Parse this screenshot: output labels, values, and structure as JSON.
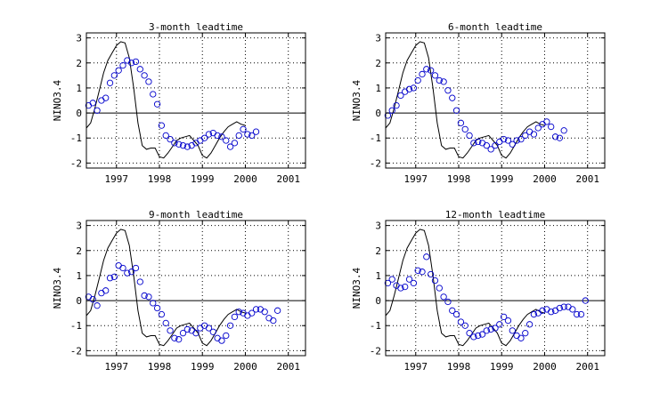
{
  "colors": {
    "forecast": "#0000cc",
    "observed": "#000000"
  },
  "shared": {
    "ylabel": "NINO3.4",
    "xlim": [
      1996.3,
      2001.4
    ],
    "ylim": [
      -2.2,
      3.2
    ],
    "xticks": [
      1997,
      1998,
      1999,
      2000,
      2001
    ],
    "xtick_labels": [
      "1997",
      "1998",
      "1999",
      "2000",
      "2001"
    ],
    "yticks": [
      -2,
      -1,
      0,
      1,
      2,
      3
    ],
    "ytick_labels": [
      "-2",
      "-1",
      "0",
      "1",
      "2",
      "3"
    ],
    "grid": true
  },
  "chart_data": [
    {
      "type": "line+scatter",
      "title": "3-month leadtime",
      "ylabel": "NINO3.4",
      "observed": {
        "x": [
          1996.3,
          1996.4,
          1996.5,
          1996.6,
          1996.7,
          1996.8,
          1996.9,
          1997.0,
          1997.1,
          1997.2,
          1997.3,
          1997.4,
          1997.5,
          1997.6,
          1997.7,
          1997.8,
          1997.9,
          1998.0,
          1998.1,
          1998.2,
          1998.3,
          1998.4,
          1998.5,
          1998.6,
          1998.7,
          1998.8,
          1998.9,
          1999.0,
          1999.1,
          1999.2,
          1999.3,
          1999.4,
          1999.5,
          1999.6,
          1999.7,
          1999.8,
          1999.9,
          2000.0
        ],
        "y": [
          -0.6,
          -0.4,
          0.2,
          0.9,
          1.6,
          2.1,
          2.4,
          2.7,
          2.85,
          2.8,
          2.2,
          1.0,
          -0.4,
          -1.3,
          -1.45,
          -1.4,
          -1.4,
          -1.75,
          -1.8,
          -1.6,
          -1.35,
          -1.1,
          -1.0,
          -0.95,
          -0.9,
          -1.1,
          -1.3,
          -1.7,
          -1.8,
          -1.6,
          -1.3,
          -1.0,
          -0.75,
          -0.55,
          -0.45,
          -0.35,
          -0.45,
          -0.5
        ]
      },
      "forecast": {
        "x": [
          1996.35,
          1996.45,
          1996.55,
          1996.65,
          1996.75,
          1996.85,
          1996.95,
          1997.05,
          1997.15,
          1997.25,
          1997.35,
          1997.45,
          1997.55,
          1997.65,
          1997.75,
          1997.85,
          1997.95,
          1998.05,
          1998.15,
          1998.25,
          1998.35,
          1998.45,
          1998.55,
          1998.65,
          1998.75,
          1998.85,
          1998.95,
          1999.05,
          1999.15,
          1999.25,
          1999.35,
          1999.45,
          1999.55,
          1999.65,
          1999.75,
          1999.85,
          1999.95,
          2000.05,
          2000.15,
          2000.25
        ],
        "y": [
          0.3,
          0.4,
          0.1,
          0.5,
          0.6,
          1.2,
          1.5,
          1.7,
          1.9,
          2.1,
          2.0,
          2.05,
          1.75,
          1.5,
          1.25,
          0.75,
          0.35,
          -0.5,
          -0.9,
          -1.05,
          -1.2,
          -1.25,
          -1.3,
          -1.35,
          -1.3,
          -1.2,
          -1.1,
          -1.0,
          -0.85,
          -0.8,
          -0.9,
          -0.95,
          -1.1,
          -1.35,
          -1.2,
          -0.9,
          -0.65,
          -0.85,
          -0.9,
          -0.75
        ]
      }
    },
    {
      "type": "line+scatter",
      "title": "6-month leadtime",
      "ylabel": "NINO3.4",
      "observed": {
        "x": [
          1996.3,
          1996.4,
          1996.5,
          1996.6,
          1996.7,
          1996.8,
          1996.9,
          1997.0,
          1997.1,
          1997.2,
          1997.3,
          1997.4,
          1997.5,
          1997.6,
          1997.7,
          1997.8,
          1997.9,
          1998.0,
          1998.1,
          1998.2,
          1998.3,
          1998.4,
          1998.5,
          1998.6,
          1998.7,
          1998.8,
          1998.9,
          1999.0,
          1999.1,
          1999.2,
          1999.3,
          1999.4,
          1999.5,
          1999.6,
          1999.7,
          1999.8,
          1999.9,
          2000.0
        ],
        "y": [
          -0.6,
          -0.4,
          0.2,
          0.9,
          1.6,
          2.1,
          2.4,
          2.7,
          2.85,
          2.8,
          2.2,
          1.0,
          -0.4,
          -1.3,
          -1.45,
          -1.4,
          -1.4,
          -1.75,
          -1.8,
          -1.6,
          -1.35,
          -1.1,
          -1.0,
          -0.95,
          -0.9,
          -1.1,
          -1.3,
          -1.7,
          -1.8,
          -1.6,
          -1.3,
          -1.0,
          -0.75,
          -0.55,
          -0.45,
          -0.35,
          -0.45,
          -0.5
        ]
      },
      "forecast": {
        "x": [
          1996.35,
          1996.45,
          1996.55,
          1996.65,
          1996.75,
          1996.85,
          1996.95,
          1997.05,
          1997.15,
          1997.25,
          1997.35,
          1997.45,
          1997.55,
          1997.65,
          1997.75,
          1997.85,
          1997.95,
          1998.05,
          1998.15,
          1998.25,
          1998.35,
          1998.45,
          1998.55,
          1998.65,
          1998.75,
          1998.85,
          1998.95,
          1999.05,
          1999.15,
          1999.25,
          1999.35,
          1999.45,
          1999.55,
          1999.65,
          1999.75,
          1999.85,
          1999.95,
          2000.05,
          2000.15,
          2000.25,
          2000.35,
          2000.45
        ],
        "y": [
          -0.1,
          0.1,
          0.3,
          0.7,
          0.85,
          0.95,
          1.0,
          1.3,
          1.55,
          1.75,
          1.7,
          1.5,
          1.3,
          1.25,
          0.9,
          0.6,
          0.1,
          -0.4,
          -0.65,
          -0.9,
          -1.2,
          -1.15,
          -1.2,
          -1.3,
          -1.45,
          -1.3,
          -1.15,
          -1.05,
          -1.1,
          -1.25,
          -1.1,
          -1.05,
          -0.9,
          -0.75,
          -0.85,
          -0.6,
          -0.45,
          -0.35,
          -0.55,
          -0.95,
          -1.0,
          -0.7
        ]
      }
    },
    {
      "type": "line+scatter",
      "title": "9-month leadtime",
      "ylabel": "NINO3.4",
      "observed": {
        "x": [
          1996.3,
          1996.4,
          1996.5,
          1996.6,
          1996.7,
          1996.8,
          1996.9,
          1997.0,
          1997.1,
          1997.2,
          1997.3,
          1997.4,
          1997.5,
          1997.6,
          1997.7,
          1997.8,
          1997.9,
          1998.0,
          1998.1,
          1998.2,
          1998.3,
          1998.4,
          1998.5,
          1998.6,
          1998.7,
          1998.8,
          1998.9,
          1999.0,
          1999.1,
          1999.2,
          1999.3,
          1999.4,
          1999.5,
          1999.6,
          1999.7,
          1999.8,
          1999.9,
          2000.0
        ],
        "y": [
          -0.6,
          -0.4,
          0.2,
          0.9,
          1.6,
          2.1,
          2.4,
          2.7,
          2.85,
          2.8,
          2.2,
          1.0,
          -0.4,
          -1.3,
          -1.45,
          -1.4,
          -1.4,
          -1.75,
          -1.8,
          -1.6,
          -1.35,
          -1.1,
          -1.0,
          -0.95,
          -0.9,
          -1.1,
          -1.3,
          -1.7,
          -1.8,
          -1.6,
          -1.3,
          -1.0,
          -0.75,
          -0.55,
          -0.45,
          -0.35,
          -0.45,
          -0.5
        ]
      },
      "forecast": {
        "x": [
          1996.35,
          1996.45,
          1996.55,
          1996.65,
          1996.75,
          1996.85,
          1996.95,
          1997.05,
          1997.15,
          1997.25,
          1997.35,
          1997.45,
          1997.55,
          1997.65,
          1997.75,
          1997.85,
          1997.95,
          1998.05,
          1998.15,
          1998.25,
          1998.35,
          1998.45,
          1998.55,
          1998.65,
          1998.75,
          1998.85,
          1998.95,
          1999.05,
          1999.15,
          1999.25,
          1999.35,
          1999.45,
          1999.55,
          1999.65,
          1999.75,
          1999.85,
          1999.95,
          2000.05,
          2000.15,
          2000.25,
          2000.35,
          2000.45,
          2000.55,
          2000.65,
          2000.75
        ],
        "y": [
          0.15,
          0.05,
          -0.2,
          0.3,
          0.4,
          0.9,
          0.95,
          1.4,
          1.3,
          1.1,
          1.15,
          1.3,
          0.75,
          0.2,
          0.15,
          -0.1,
          -0.3,
          -0.55,
          -0.9,
          -1.2,
          -1.5,
          -1.55,
          -1.3,
          -1.15,
          -1.2,
          -1.3,
          -1.1,
          -1.0,
          -1.1,
          -1.25,
          -1.5,
          -1.6,
          -1.4,
          -1.0,
          -0.65,
          -0.45,
          -0.5,
          -0.6,
          -0.5,
          -0.35,
          -0.35,
          -0.45,
          -0.7,
          -0.8,
          -0.4
        ]
      }
    },
    {
      "type": "line+scatter",
      "title": "12-month leadtime",
      "ylabel": "NINO3.4",
      "observed": {
        "x": [
          1996.3,
          1996.4,
          1996.5,
          1996.6,
          1996.7,
          1996.8,
          1996.9,
          1997.0,
          1997.1,
          1997.2,
          1997.3,
          1997.4,
          1997.5,
          1997.6,
          1997.7,
          1997.8,
          1997.9,
          1998.0,
          1998.1,
          1998.2,
          1998.3,
          1998.4,
          1998.5,
          1998.6,
          1998.7,
          1998.8,
          1998.9,
          1999.0,
          1999.1,
          1999.2,
          1999.3,
          1999.4,
          1999.5,
          1999.6,
          1999.7,
          1999.8,
          1999.9,
          2000.0
        ],
        "y": [
          -0.6,
          -0.4,
          0.2,
          0.9,
          1.6,
          2.1,
          2.4,
          2.7,
          2.85,
          2.8,
          2.2,
          1.0,
          -0.4,
          -1.3,
          -1.45,
          -1.4,
          -1.4,
          -1.75,
          -1.8,
          -1.6,
          -1.35,
          -1.1,
          -1.0,
          -0.95,
          -0.9,
          -1.1,
          -1.3,
          -1.7,
          -1.8,
          -1.6,
          -1.3,
          -1.0,
          -0.75,
          -0.55,
          -0.45,
          -0.35,
          -0.45,
          -0.5
        ]
      },
      "forecast": {
        "x": [
          1996.35,
          1996.45,
          1996.55,
          1996.65,
          1996.75,
          1996.85,
          1996.95,
          1997.05,
          1997.15,
          1997.25,
          1997.35,
          1997.45,
          1997.55,
          1997.65,
          1997.75,
          1997.85,
          1997.95,
          1998.05,
          1998.15,
          1998.25,
          1998.35,
          1998.45,
          1998.55,
          1998.65,
          1998.75,
          1998.85,
          1998.95,
          1999.05,
          1999.15,
          1999.25,
          1999.35,
          1999.45,
          1999.55,
          1999.65,
          1999.75,
          1999.85,
          1999.95,
          2000.05,
          2000.15,
          2000.25,
          2000.35,
          2000.45,
          2000.55,
          2000.65,
          2000.75,
          2000.85,
          2000.95
        ],
        "y": [
          0.7,
          0.85,
          0.6,
          0.5,
          0.55,
          0.85,
          0.7,
          1.2,
          1.15,
          1.75,
          1.05,
          0.8,
          0.5,
          0.15,
          -0.05,
          -0.4,
          -0.55,
          -0.85,
          -1.0,
          -1.3,
          -1.45,
          -1.4,
          -1.35,
          -1.2,
          -1.15,
          -1.1,
          -0.95,
          -0.65,
          -0.8,
          -1.2,
          -1.4,
          -1.5,
          -1.3,
          -0.95,
          -0.55,
          -0.5,
          -0.4,
          -0.35,
          -0.45,
          -0.4,
          -0.3,
          -0.25,
          -0.25,
          -0.35,
          -0.55,
          -0.55,
          0.0
        ]
      }
    }
  ]
}
